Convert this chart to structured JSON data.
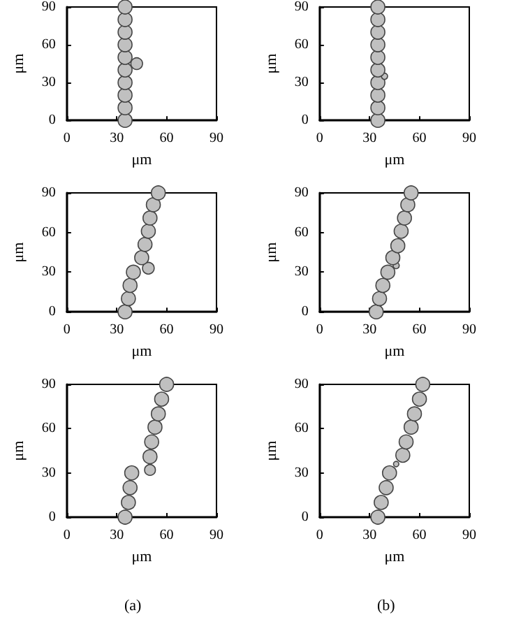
{
  "chart_data": [
    {
      "type": "bubble",
      "xlabel": "μm",
      "ylabel": "μm",
      "x": [
        35,
        35,
        35,
        35,
        42,
        35,
        35,
        35,
        35,
        35,
        35
      ],
      "values": [
        0,
        10,
        20,
        30,
        45,
        40,
        50,
        60,
        70,
        80,
        90
      ],
      "sizes": [
        1,
        1,
        1,
        1,
        0.7,
        1,
        1,
        1,
        1,
        1,
        1
      ],
      "color": "#c0c0c0",
      "xlim": [
        0,
        90
      ],
      "ylim": [
        0,
        90
      ],
      "xticks": [
        0,
        30,
        60,
        90
      ],
      "yticks": [
        0,
        30,
        60,
        90
      ],
      "grid": false,
      "marker": "circle"
    },
    {
      "type": "bubble",
      "xlabel": "μm",
      "ylabel": "μm",
      "x": [
        35,
        35,
        35,
        35,
        39,
        35,
        35,
        35,
        35,
        35,
        35
      ],
      "values": [
        0,
        10,
        20,
        30,
        35,
        40,
        50,
        60,
        70,
        80,
        90
      ],
      "sizes": [
        1,
        1,
        1,
        1,
        0.2,
        1,
        1,
        1,
        1,
        1,
        1
      ],
      "color": "#c0c0c0",
      "xlim": [
        0,
        90
      ],
      "ylim": [
        0,
        90
      ],
      "xticks": [
        0,
        30,
        60,
        90
      ],
      "yticks": [
        0,
        30,
        60,
        90
      ],
      "grid": false,
      "marker": "circle"
    },
    {
      "type": "bubble",
      "xlabel": "μm",
      "ylabel": "μm",
      "x": [
        35,
        37,
        38,
        40,
        49,
        45,
        47,
        49,
        50,
        52,
        55
      ],
      "values": [
        0,
        10,
        20,
        30,
        33,
        41,
        51,
        61,
        71,
        81,
        90
      ],
      "sizes": [
        1,
        1,
        1,
        1,
        0.7,
        1,
        1,
        1,
        1,
        1,
        1
      ],
      "color": "#c0c0c0",
      "xlim": [
        0,
        90
      ],
      "ylim": [
        0,
        90
      ],
      "xticks": [
        0,
        30,
        60,
        90
      ],
      "yticks": [
        0,
        30,
        60,
        90
      ],
      "grid": false,
      "marker": "circle"
    },
    {
      "type": "bubble",
      "xlabel": "μm",
      "ylabel": "μm",
      "x": [
        34,
        36,
        38,
        41,
        46,
        44,
        47,
        49,
        51,
        53,
        55
      ],
      "values": [
        0,
        10,
        20,
        30,
        35,
        41,
        50,
        61,
        71,
        81,
        90
      ],
      "sizes": [
        1,
        1,
        1,
        1,
        0.2,
        1,
        1,
        1,
        1,
        1,
        1
      ],
      "color": "#c0c0c0",
      "xlim": [
        0,
        90
      ],
      "ylim": [
        0,
        90
      ],
      "xticks": [
        0,
        30,
        60,
        90
      ],
      "yticks": [
        0,
        30,
        60,
        90
      ],
      "grid": false,
      "marker": "circle"
    },
    {
      "type": "bubble",
      "xlabel": "μm",
      "ylabel": "μm",
      "x": [
        35,
        37,
        38,
        39,
        50,
        50,
        51,
        53,
        55,
        57,
        60
      ],
      "values": [
        0,
        10,
        20,
        30,
        32,
        41,
        51,
        61,
        70,
        80,
        90
      ],
      "sizes": [
        1,
        1,
        1,
        1,
        0.6,
        1,
        1,
        1,
        1,
        1,
        1
      ],
      "color": "#c0c0c0",
      "xlim": [
        0,
        90
      ],
      "ylim": [
        0,
        90
      ],
      "xticks": [
        0,
        30,
        60,
        90
      ],
      "yticks": [
        0,
        30,
        60,
        90
      ],
      "grid": false,
      "marker": "circle",
      "annotations": [
        "(a)"
      ]
    },
    {
      "type": "bubble",
      "xlabel": "μm",
      "ylabel": "μm",
      "x": [
        35,
        37,
        40,
        42,
        46,
        50,
        52,
        55,
        57,
        60,
        62
      ],
      "values": [
        0,
        10,
        20,
        30,
        36,
        42,
        51,
        61,
        70,
        80,
        90
      ],
      "sizes": [
        1,
        1,
        1,
        1,
        0.15,
        1,
        1,
        1,
        1,
        1,
        1
      ],
      "color": "#c0c0c0",
      "xlim": [
        0,
        90
      ],
      "ylim": [
        0,
        90
      ],
      "xticks": [
        0,
        30,
        60,
        90
      ],
      "yticks": [
        0,
        30,
        60,
        90
      ],
      "grid": false,
      "marker": "circle",
      "annotations": [
        "(b)"
      ]
    }
  ]
}
